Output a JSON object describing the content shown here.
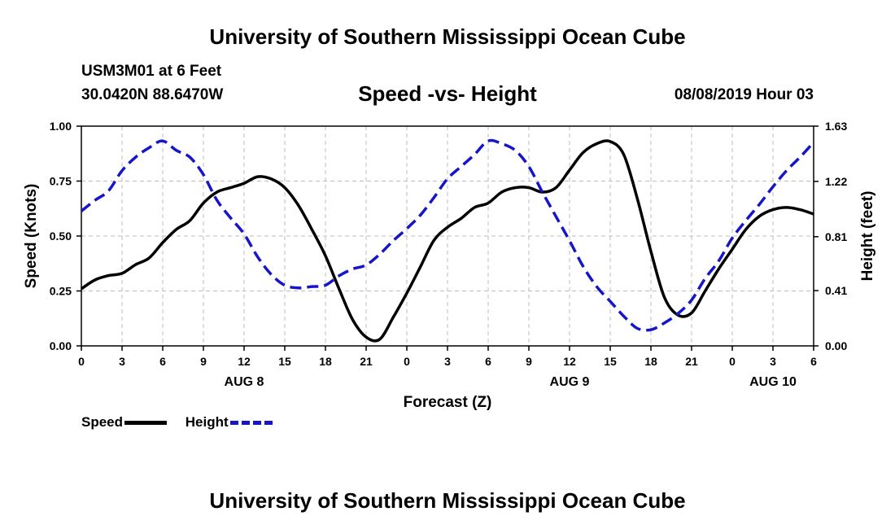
{
  "page": {
    "title_top": "University of Southern Mississippi Ocean Cube",
    "title_bottom": "University of Southern Mississippi Ocean Cube",
    "station": "USM3M01 at 6 Feet",
    "coordinates": "30.0420N 88.6470W",
    "date": "08/08/2019 Hour 03"
  },
  "legend": {
    "speed_label": "Speed",
    "height_label": "Height"
  },
  "colors": {
    "speed": "#000000",
    "height": "#1616c8",
    "grid": "#bdbdbd"
  },
  "chart_data": {
    "type": "line",
    "title": "Speed -vs- Height",
    "xlabel": "Forecast (Z)",
    "ylabel": "Speed (Knots)",
    "y2label": "Height (feet)",
    "xlim": [
      0,
      54
    ],
    "ylim": [
      0,
      1.0
    ],
    "y2lim": [
      0,
      1.63
    ],
    "x_ticks": [
      0,
      3,
      6,
      9,
      12,
      15,
      18,
      21,
      24,
      27,
      30,
      33,
      36,
      39,
      42,
      45,
      48,
      51,
      54
    ],
    "x_tick_labels": [
      "0",
      "3",
      "6",
      "9",
      "12",
      "15",
      "18",
      "21",
      "0",
      "3",
      "6",
      "9",
      "12",
      "15",
      "18",
      "21",
      "0",
      "3",
      "6"
    ],
    "y_ticks": [
      0,
      0.25,
      0.5,
      0.75,
      1.0
    ],
    "y_tick_labels": [
      "0.00",
      "0.25",
      "0.50",
      "0.75",
      "1.00"
    ],
    "y2_ticks": [
      0,
      0.41,
      0.81,
      1.22,
      1.63
    ],
    "y2_tick_labels": [
      "0.00",
      "0.41",
      "0.81",
      "1.22",
      "1.63"
    ],
    "date_labels": [
      {
        "x": 12,
        "label": "AUG 8"
      },
      {
        "x": 36,
        "label": "AUG 9"
      },
      {
        "x": 51,
        "label": "AUG 10"
      }
    ],
    "grid": true,
    "series": [
      {
        "name": "Speed",
        "axis": "left",
        "style": "solid",
        "x": [
          0,
          1,
          2,
          3,
          4,
          5,
          6,
          7,
          8,
          9,
          10,
          11,
          12,
          13,
          14,
          15,
          16,
          17,
          18,
          19,
          20,
          21,
          22,
          23,
          24,
          25,
          26,
          27,
          28,
          29,
          30,
          31,
          32,
          33,
          34,
          35,
          36,
          37,
          38,
          39,
          40,
          41,
          42,
          43,
          44,
          45,
          46,
          47,
          48,
          49,
          50,
          51,
          52,
          53,
          54
        ],
        "values": [
          0.26,
          0.3,
          0.32,
          0.33,
          0.37,
          0.4,
          0.47,
          0.53,
          0.57,
          0.65,
          0.7,
          0.72,
          0.74,
          0.77,
          0.76,
          0.72,
          0.64,
          0.53,
          0.41,
          0.26,
          0.12,
          0.04,
          0.03,
          0.13,
          0.24,
          0.36,
          0.48,
          0.54,
          0.58,
          0.63,
          0.65,
          0.7,
          0.72,
          0.72,
          0.7,
          0.72,
          0.8,
          0.88,
          0.92,
          0.93,
          0.87,
          0.67,
          0.43,
          0.22,
          0.14,
          0.15,
          0.25,
          0.35,
          0.44,
          0.53,
          0.59,
          0.62,
          0.63,
          0.62,
          0.6
        ]
      },
      {
        "name": "Height",
        "axis": "right",
        "style": "dashed",
        "x": [
          0,
          1,
          2,
          3,
          4,
          5,
          6,
          7,
          8,
          9,
          10,
          11,
          12,
          13,
          14,
          15,
          16,
          17,
          18,
          19,
          20,
          21,
          22,
          23,
          24,
          25,
          26,
          27,
          28,
          29,
          30,
          31,
          32,
          33,
          34,
          35,
          36,
          37,
          38,
          39,
          40,
          41,
          42,
          43,
          44,
          45,
          46,
          47,
          48,
          49,
          50,
          51,
          52,
          53,
          54
        ],
        "values": [
          1.0,
          1.08,
          1.15,
          1.3,
          1.4,
          1.47,
          1.52,
          1.45,
          1.4,
          1.27,
          1.08,
          0.95,
          0.83,
          0.66,
          0.53,
          0.45,
          0.43,
          0.44,
          0.45,
          0.52,
          0.57,
          0.6,
          0.68,
          0.78,
          0.87,
          0.97,
          1.1,
          1.24,
          1.33,
          1.42,
          1.52,
          1.5,
          1.45,
          1.33,
          1.14,
          0.96,
          0.78,
          0.59,
          0.44,
          0.33,
          0.22,
          0.13,
          0.12,
          0.17,
          0.24,
          0.34,
          0.5,
          0.63,
          0.8,
          0.93,
          1.05,
          1.18,
          1.3,
          1.4,
          1.51
        ]
      }
    ]
  }
}
